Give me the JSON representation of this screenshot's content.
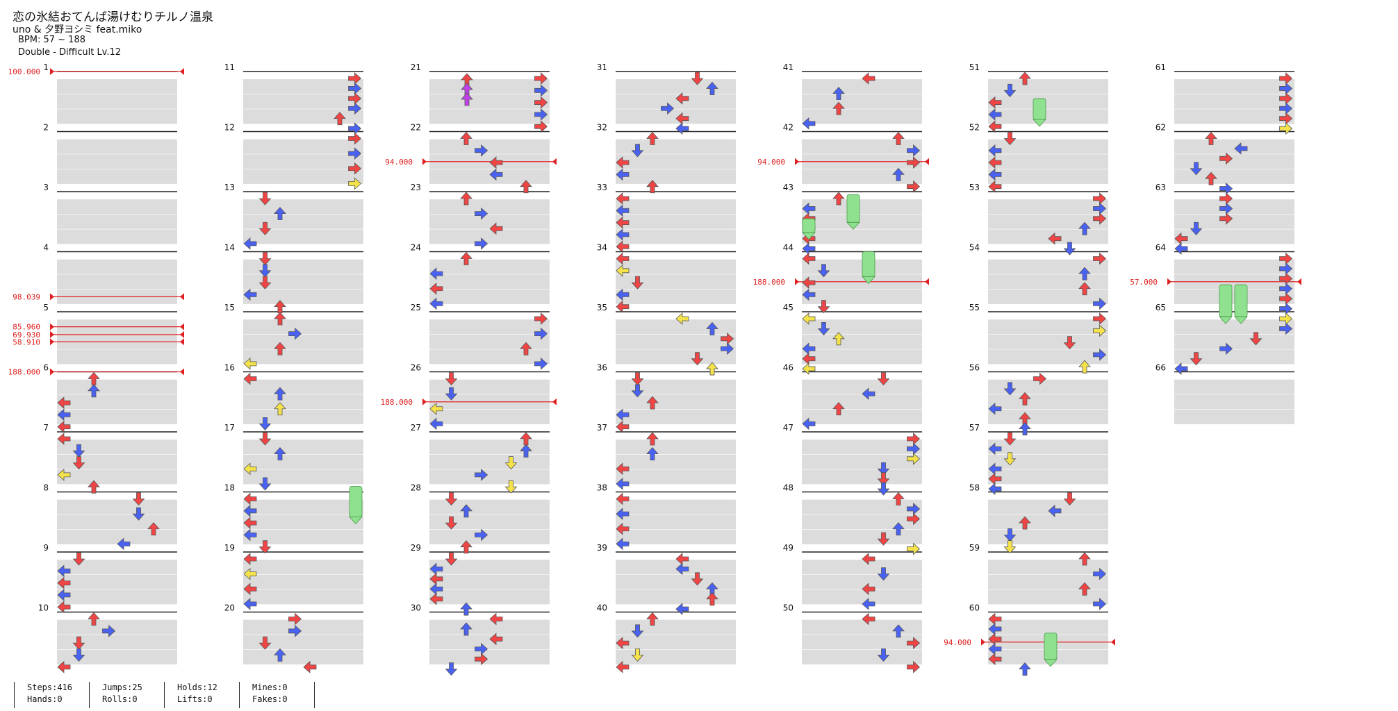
{
  "song": {
    "title": "恋の氷結おてんば湯けむりチルノ温泉",
    "artist": "uno & 夕野ヨシミ feat.miko",
    "bpm_text": "BPM: 57 ~ 188",
    "difficulty_text": "Double - Difficult Lv.12"
  },
  "colors": {
    "red": "#f04545",
    "blue": "#4a62f2",
    "yellow": "#f4e24a",
    "purple": "#c040e8",
    "hold": "#8fe08f",
    "bpm_line": "#e02020",
    "band": "#dcdcdc"
  },
  "measures": [
    "1",
    "2",
    "3",
    "4",
    "5",
    "6",
    "7",
    "8",
    "9",
    "10",
    "11",
    "12",
    "13",
    "14",
    "15",
    "16",
    "17",
    "18",
    "19",
    "20",
    "21",
    "22",
    "23",
    "24",
    "25",
    "26",
    "27",
    "28",
    "29",
    "30",
    "31",
    "32",
    "33",
    "34",
    "35",
    "36",
    "37",
    "38",
    "39",
    "40",
    "41",
    "42",
    "43",
    "44",
    "45",
    "46",
    "47",
    "48",
    "49",
    "50",
    "51",
    "52",
    "53",
    "54",
    "55",
    "56",
    "57",
    "58",
    "59",
    "60",
    "61",
    "62",
    "63",
    "64",
    "65",
    "66"
  ],
  "bpm_changes": [
    {
      "column": 0,
      "measure": 1,
      "value": "100.000"
    },
    {
      "column": 0,
      "measure": 4.75,
      "value": "98.039"
    },
    {
      "column": 0,
      "measure": 5.25,
      "value": "85.960"
    },
    {
      "column": 0,
      "measure": 5.38,
      "value": "69.930"
    },
    {
      "column": 0,
      "measure": 5.5,
      "value": "58.910"
    },
    {
      "column": 0,
      "measure": 6,
      "value": "188.000"
    },
    {
      "column": 2,
      "measure": 22.5,
      "value": "94.000"
    },
    {
      "column": 2,
      "measure": 26.5,
      "value": "188.000"
    },
    {
      "column": 4,
      "measure": 42.5,
      "value": "94.000"
    },
    {
      "column": 4,
      "measure": 44.5,
      "value": "188.000"
    },
    {
      "column": 5,
      "measure": 60.5,
      "value": "94.000"
    },
    {
      "column": 6,
      "measure": 64.5,
      "value": "57.000"
    }
  ],
  "stats": [
    {
      "line1": "Steps:416",
      "line2": "Hands:0"
    },
    {
      "line1": "Jumps:25",
      "line2": "Rolls:0"
    },
    {
      "line1": "Holds:12",
      "line2": "Lifts:0"
    },
    {
      "line1": "Mines:0",
      "line2": "Fakes:0"
    }
  ]
}
